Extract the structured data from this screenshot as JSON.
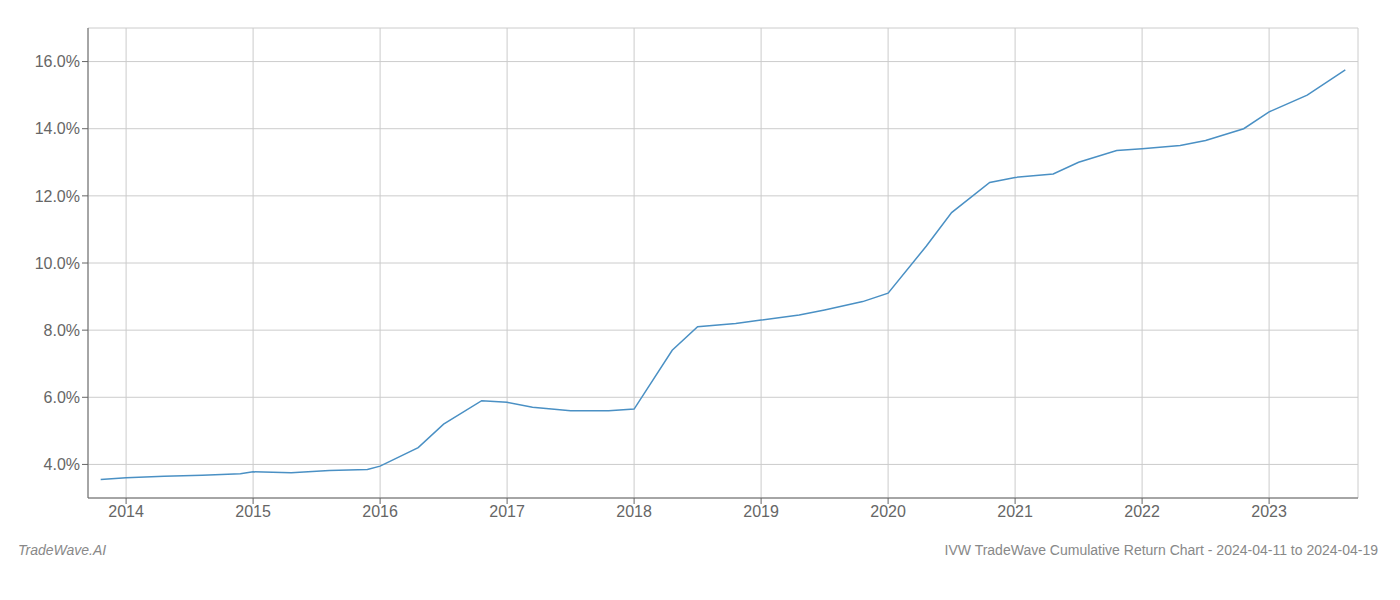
{
  "chart_data": {
    "type": "line",
    "title": "IVW TradeWave Cumulative Return Chart - 2024-04-11 to 2024-04-19",
    "annotations": [
      "TradeWave.AI"
    ],
    "color": "#4a90c4",
    "grid": true,
    "x": [
      2013.8,
      2014.0,
      2014.3,
      2014.6,
      2014.9,
      2015.0,
      2015.3,
      2015.6,
      2015.9,
      2016.0,
      2016.3,
      2016.5,
      2016.8,
      2017.0,
      2017.2,
      2017.5,
      2017.8,
      2018.0,
      2018.3,
      2018.5,
      2018.8,
      2019.0,
      2019.3,
      2019.5,
      2019.8,
      2020.0,
      2020.3,
      2020.5,
      2020.8,
      2021.0,
      2021.3,
      2021.5,
      2021.8,
      2022.0,
      2022.3,
      2022.5,
      2022.8,
      2023.0,
      2023.3,
      2023.6
    ],
    "values": [
      3.55,
      3.6,
      3.65,
      3.68,
      3.72,
      3.78,
      3.75,
      3.82,
      3.85,
      3.95,
      4.5,
      5.2,
      5.9,
      5.85,
      5.7,
      5.6,
      5.6,
      5.65,
      7.4,
      8.1,
      8.2,
      8.3,
      8.45,
      8.6,
      8.85,
      9.1,
      10.5,
      11.5,
      12.4,
      12.55,
      12.65,
      13.0,
      13.35,
      13.4,
      13.5,
      13.65,
      14.0,
      14.5,
      15.0,
      15.75
    ],
    "xlim": [
      2013.7,
      2023.7
    ],
    "ylim": [
      3.0,
      17.0
    ],
    "xticks": [
      2014,
      2015,
      2016,
      2017,
      2018,
      2019,
      2020,
      2021,
      2022,
      2023
    ],
    "yticks": [
      {
        "value": 4.0,
        "label": "4.0%"
      },
      {
        "value": 6.0,
        "label": "6.0%"
      },
      {
        "value": 8.0,
        "label": "8.0%"
      },
      {
        "value": 10.0,
        "label": "10.0%"
      },
      {
        "value": 12.0,
        "label": "12.0%"
      },
      {
        "value": 14.0,
        "label": "14.0%"
      },
      {
        "value": 16.0,
        "label": "16.0%"
      }
    ]
  }
}
